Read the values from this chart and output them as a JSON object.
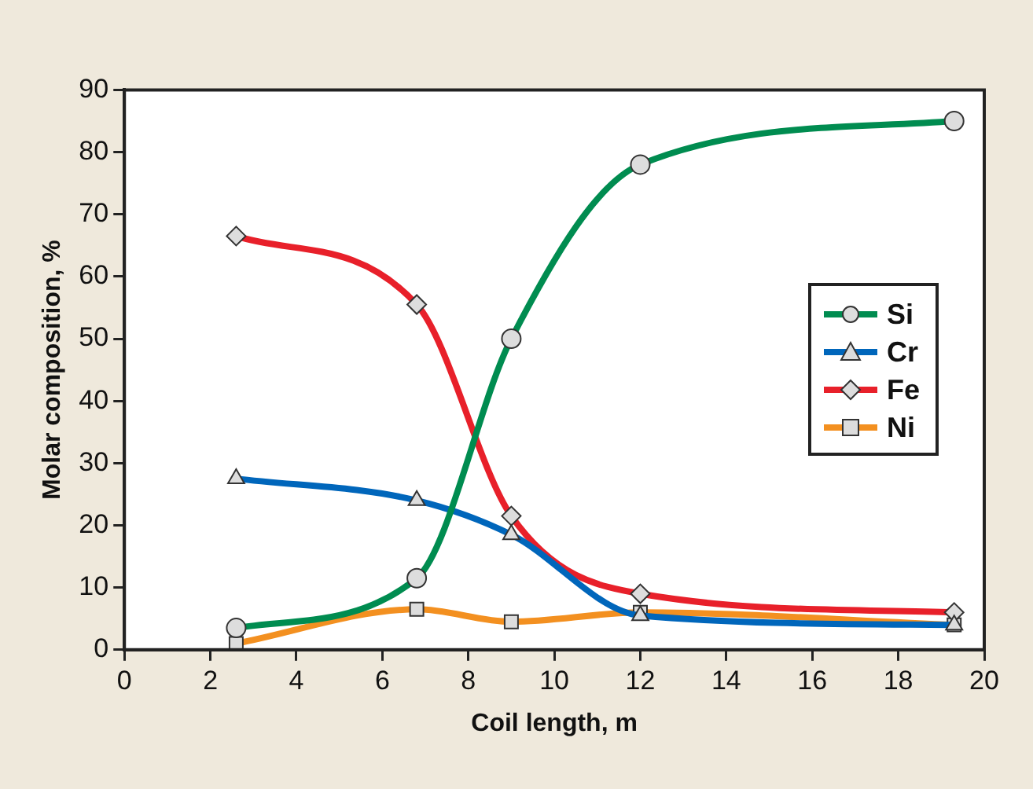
{
  "chart_data": {
    "type": "line",
    "xlabel": "Coil length, m",
    "ylabel": "Molar composition, %",
    "x": [
      2.6,
      6.8,
      9.0,
      12.0,
      19.3
    ],
    "xlim": [
      0,
      20
    ],
    "xticks": [
      0,
      2,
      4,
      6,
      8,
      10,
      12,
      14,
      16,
      18,
      20
    ],
    "ylim": [
      0,
      90
    ],
    "yticks": [
      0,
      10,
      20,
      30,
      40,
      50,
      60,
      70,
      80,
      90
    ],
    "grid": false,
    "legend": "right",
    "series": [
      {
        "name": "Si",
        "color": "#008c50",
        "marker": "circle",
        "values": [
          3.5,
          11.5,
          50,
          78,
          85
        ]
      },
      {
        "name": "Cr",
        "color": "#0066bb",
        "marker": "triangle",
        "values": [
          27.5,
          24,
          18.5,
          5.5,
          4
        ]
      },
      {
        "name": "Fe",
        "color": "#e8202a",
        "marker": "diamond",
        "values": [
          66.5,
          55.5,
          21.5,
          9,
          6
        ]
      },
      {
        "name": "Ni",
        "color": "#f39020",
        "marker": "square",
        "values": [
          1,
          6.5,
          4.5,
          6,
          4
        ]
      }
    ]
  }
}
